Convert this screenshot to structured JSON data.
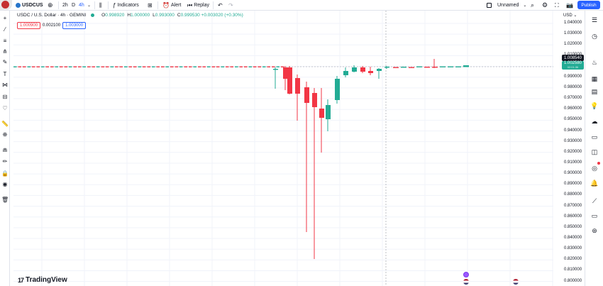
{
  "topbar": {
    "symbol": "USDCUS",
    "timeframes": [
      "2h",
      "D",
      "4h"
    ],
    "indicators_label": "Indicators",
    "alert_label": "Alert",
    "replay_label": "Replay",
    "layout_name": "Unnamed",
    "publish_label": "Publish"
  },
  "legend": {
    "title": "USDC / U.S. Dollar · 4h · GEMINI",
    "o_label": "O",
    "o_val": "0.998920",
    "h_label": "H",
    "h_val": "1.000000",
    "l_label": "L",
    "l_val": "0.993000",
    "c_label": "C",
    "c_val": "0.999530 +0.003020 (+0.30%)",
    "bid": "1.000900",
    "spread": "0.002100",
    "ask": "1.003000"
  },
  "price_axis": {
    "currency": "USD",
    "ticks": [
      "1.040000",
      "1.030000",
      "1.020000",
      "1.010000",
      "1.000000",
      "0.990000",
      "0.980000",
      "0.970000",
      "0.960000",
      "0.950000",
      "0.940000",
      "0.930000",
      "0.920000",
      "0.910000",
      "0.900000",
      "0.890000",
      "0.880000",
      "0.870000",
      "0.860000",
      "0.850000",
      "0.840000",
      "0.830000",
      "0.820000",
      "0.810000",
      "0.800000"
    ],
    "tag_high": "1.008540",
    "tag_current": "1.002580",
    "tag_current_sub": "02:01:36"
  },
  "branding": {
    "name": "TradingView"
  },
  "colors": {
    "up": "#22ab94",
    "down": "#f23645",
    "accent": "#2962ff"
  }
}
